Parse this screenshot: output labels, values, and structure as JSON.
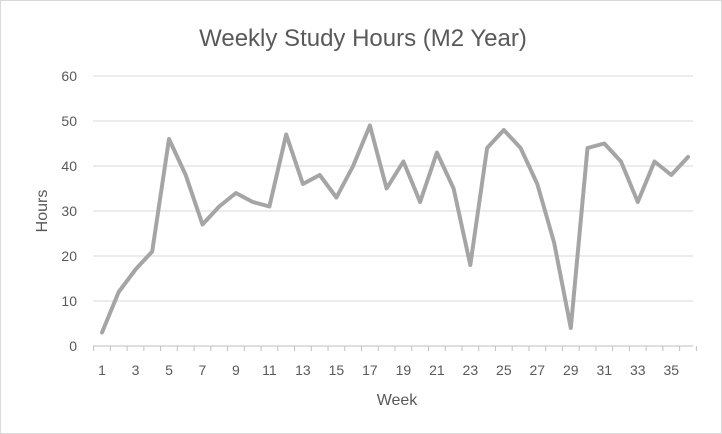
{
  "chart_data": {
    "type": "line",
    "title": "Weekly Study Hours (M2 Year)",
    "xlabel": "Week",
    "ylabel": "Hours",
    "x": [
      1,
      2,
      3,
      4,
      5,
      6,
      7,
      8,
      9,
      10,
      11,
      12,
      13,
      14,
      15,
      16,
      17,
      18,
      19,
      20,
      21,
      22,
      23,
      24,
      25,
      26,
      27,
      28,
      29,
      30,
      31,
      32,
      33,
      34,
      35,
      36
    ],
    "x_tick_labels": [
      "1",
      "3",
      "5",
      "7",
      "9",
      "11",
      "13",
      "15",
      "17",
      "19",
      "21",
      "23",
      "25",
      "27",
      "29",
      "31",
      "33",
      "35"
    ],
    "series": [
      {
        "values": [
          3,
          12,
          17,
          21,
          46,
          38,
          27,
          31,
          34,
          32,
          31,
          47,
          36,
          38,
          33,
          40,
          49,
          35,
          41,
          32,
          43,
          35,
          18,
          44,
          48,
          44,
          36,
          23,
          4,
          44,
          45,
          41,
          32,
          41,
          38,
          42
        ],
        "color": "#a5a5a5"
      }
    ],
    "ylim": [
      0,
      60
    ],
    "y_ticks": [
      0,
      10,
      20,
      30,
      40,
      50,
      60
    ],
    "grid": true,
    "legend": "none"
  }
}
